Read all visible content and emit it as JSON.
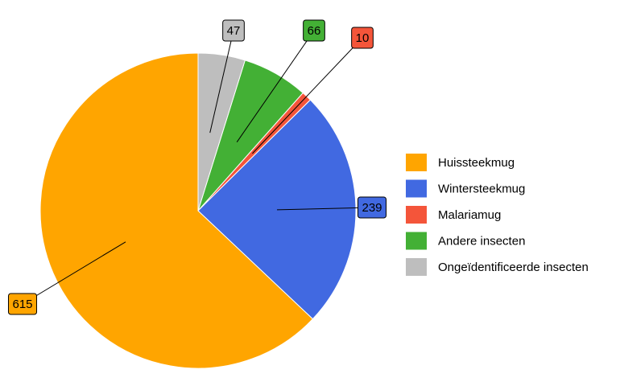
{
  "chart_data": {
    "type": "pie",
    "categories": [
      "Huissteekmug",
      "Wintersteekmug",
      "Malariamug",
      "Andere insecten",
      "Ongeïdentificeerde insecten"
    ],
    "values": [
      615,
      239,
      10,
      66,
      47
    ],
    "colors": [
      "#FFA500",
      "#4169E1",
      "#F4553A",
      "#43B035",
      "#BEBEBE"
    ]
  }
}
